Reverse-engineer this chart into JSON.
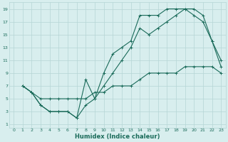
{
  "xlabel": "Humidex (Indice chaleur)",
  "bg_color": "#d8eeee",
  "grid_color": "#b5d5d5",
  "line_color": "#1a6b5a",
  "xlim": [
    -0.5,
    23.5
  ],
  "ylim": [
    0.5,
    20
  ],
  "xticks": [
    0,
    1,
    2,
    3,
    4,
    5,
    6,
    7,
    8,
    9,
    10,
    11,
    12,
    13,
    14,
    15,
    16,
    17,
    18,
    19,
    20,
    21,
    22,
    23
  ],
  "yticks": [
    1,
    3,
    5,
    7,
    9,
    11,
    13,
    15,
    17,
    19
  ],
  "line1_x": [
    1,
    2,
    3,
    4,
    5,
    6,
    7,
    8,
    9,
    10,
    11,
    12,
    13,
    14,
    15,
    16,
    17,
    18,
    19,
    20,
    21,
    22,
    23
  ],
  "line1_y": [
    7,
    6,
    5,
    5,
    5,
    5,
    5,
    5,
    6,
    6,
    7,
    7,
    7,
    8,
    9,
    9,
    9,
    9,
    10,
    10,
    10,
    10,
    9
  ],
  "line2_x": [
    1,
    2,
    3,
    4,
    5,
    6,
    7,
    8,
    9,
    10,
    11,
    12,
    13,
    14,
    15,
    16,
    17,
    18,
    19,
    20,
    21,
    22,
    23
  ],
  "line2_y": [
    7,
    6,
    4,
    3,
    3,
    3,
    2,
    8,
    5,
    9,
    12,
    13,
    14,
    18,
    18,
    18,
    19,
    19,
    19,
    19,
    18,
    14,
    11
  ],
  "line3_x": [
    1,
    2,
    3,
    4,
    5,
    6,
    7,
    8,
    9,
    10,
    11,
    12,
    13,
    14,
    15,
    16,
    17,
    18,
    19,
    20,
    21,
    22,
    23
  ],
  "line3_y": [
    7,
    6,
    4,
    3,
    3,
    3,
    2,
    4,
    5,
    7,
    9,
    11,
    13,
    16,
    15,
    16,
    17,
    18,
    19,
    18,
    17,
    14,
    10
  ]
}
